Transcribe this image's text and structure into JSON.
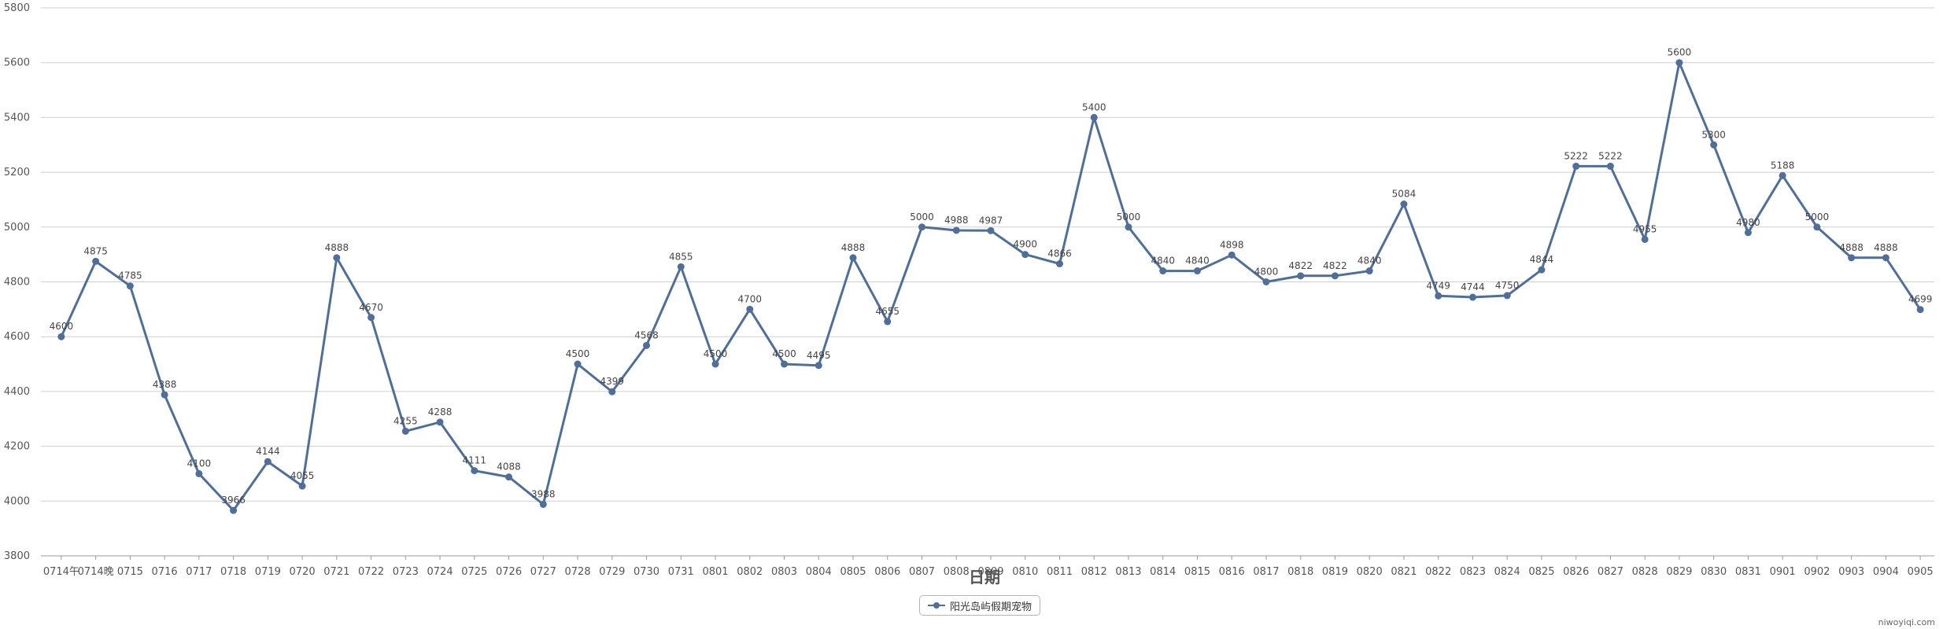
{
  "chart_data": {
    "type": "line",
    "xlabel": "日期",
    "ylabel": "",
    "ylim": [
      3800,
      5800
    ],
    "yticks": [
      3800,
      4000,
      4200,
      4400,
      4600,
      4800,
      5000,
      5200,
      5400,
      5600,
      5800
    ],
    "grid": true,
    "legend": "bottom-center",
    "categories": [
      "0714午",
      "0714晚",
      "0715",
      "0716",
      "0717",
      "0718",
      "0719",
      "0720",
      "0721",
      "0722",
      "0723",
      "0724",
      "0725",
      "0726",
      "0727",
      "0728",
      "0729",
      "0730",
      "0731",
      "0801",
      "0802",
      "0803",
      "0804",
      "0805",
      "0806",
      "0807",
      "0808",
      "0809",
      "0810",
      "0811",
      "0812",
      "0813",
      "0814",
      "0815",
      "0816",
      "0817",
      "0818",
      "0819",
      "0820",
      "0821",
      "0822",
      "0823",
      "0824",
      "0825",
      "0826",
      "0827",
      "0828",
      "0829",
      "0830",
      "0831",
      "0901",
      "0902",
      "0903",
      "0904",
      "0905"
    ],
    "series": [
      {
        "name": "阳光岛屿假期宠物",
        "color": "#4f6f98",
        "values": [
          4600,
          4875,
          4785,
          4388,
          4100,
          3966,
          4144,
          4055,
          4888,
          4670,
          4255,
          4288,
          4111,
          4088,
          3988,
          4500,
          4399,
          4568,
          4855,
          4500,
          4700,
          4500,
          4495,
          4888,
          4655,
          5000,
          4988,
          4987,
          4900,
          4866,
          5400,
          5000,
          4840,
          4840,
          4898,
          4800,
          4822,
          4822,
          4840,
          5084,
          4749,
          4744,
          4750,
          4844,
          5222,
          5222,
          4955,
          5600,
          5300,
          4980,
          5188,
          5000,
          4888,
          4888,
          4699
        ]
      }
    ]
  },
  "watermark": "niwoyiqi.com"
}
